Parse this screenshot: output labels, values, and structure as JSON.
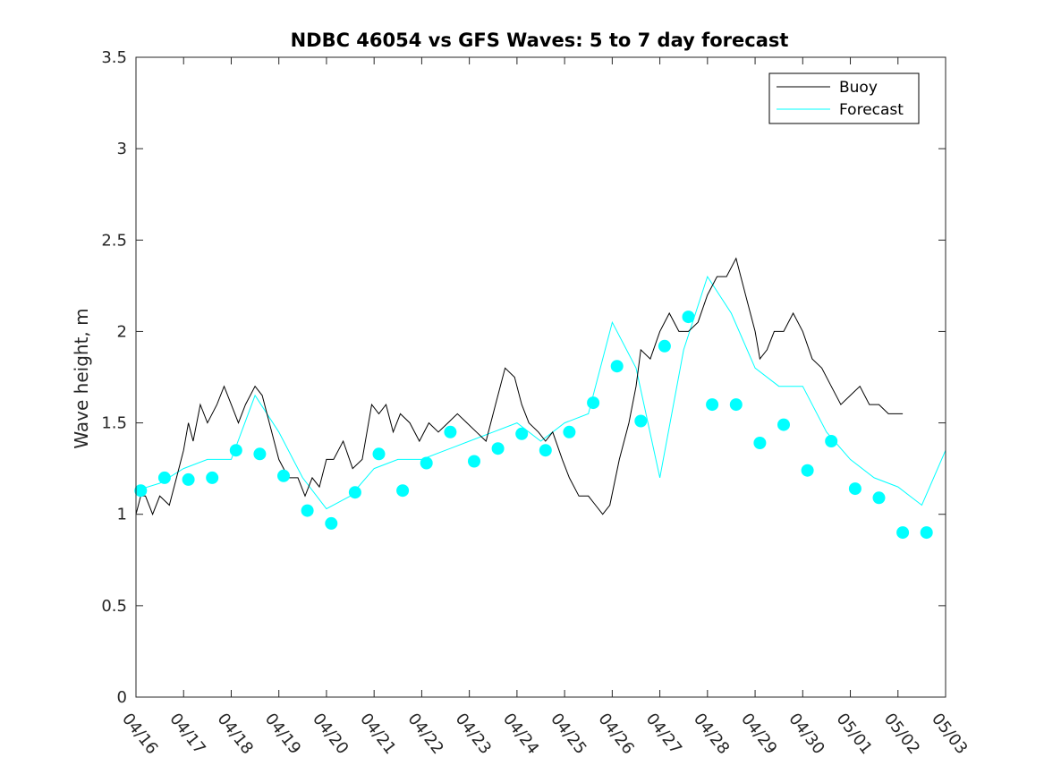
{
  "chart_data": {
    "type": "line",
    "title": "NDBC 46054 vs GFS Waves: 5 to 7 day forecast",
    "xlabel": "",
    "ylabel": "Wave height, m",
    "x_ticks": [
      "04/16",
      "04/17",
      "04/18",
      "04/19",
      "04/20",
      "04/21",
      "04/22",
      "04/23",
      "04/24",
      "04/25",
      "04/26",
      "04/27",
      "04/28",
      "04/29",
      "04/30",
      "05/01",
      "05/02",
      "05/03"
    ],
    "xlim": [
      "04/16",
      "05/03"
    ],
    "y_ticks": [
      "0",
      "0.5",
      "1",
      "1.5",
      "2",
      "2.5",
      "3",
      "3.5"
    ],
    "ylim": [
      0,
      3.5
    ],
    "legend": {
      "placement": "top-right",
      "entries": [
        "Buoy",
        "Forecast"
      ]
    },
    "colors": {
      "buoy": "#000000",
      "forecast": "#00ffff"
    },
    "series": [
      {
        "name": "Buoy",
        "x_days": [
          0,
          0.1,
          0.2,
          0.35,
          0.5,
          0.7,
          0.85,
          1.0,
          1.1,
          1.2,
          1.35,
          1.5,
          1.7,
          1.85,
          2.0,
          2.15,
          2.3,
          2.5,
          2.65,
          2.8,
          3.0,
          3.2,
          3.4,
          3.55,
          3.7,
          3.85,
          4.0,
          4.15,
          4.35,
          4.55,
          4.75,
          4.95,
          5.1,
          5.25,
          5.4,
          5.55,
          5.75,
          5.95,
          6.15,
          6.35,
          6.55,
          6.75,
          6.95,
          7.15,
          7.35,
          7.55,
          7.75,
          7.95,
          8.1,
          8.25,
          8.45,
          8.6,
          8.75,
          8.95,
          9.1,
          9.3,
          9.5,
          9.65,
          9.8,
          9.95,
          10.15,
          10.35,
          10.5,
          10.6,
          10.8,
          11.0,
          11.2,
          11.4,
          11.6,
          11.8,
          12.0,
          12.2,
          12.4,
          12.6,
          12.8,
          13.0,
          13.1,
          13.25,
          13.4,
          13.6,
          13.8,
          14.0,
          14.2,
          14.4,
          14.6,
          14.8,
          15.0,
          15.2,
          15.4,
          15.6,
          15.8,
          15.95,
          16.1
        ],
        "values": [
          1.0,
          1.1,
          1.1,
          1.0,
          1.1,
          1.05,
          1.2,
          1.35,
          1.5,
          1.4,
          1.6,
          1.5,
          1.6,
          1.7,
          1.6,
          1.5,
          1.6,
          1.7,
          1.65,
          1.5,
          1.3,
          1.2,
          1.2,
          1.1,
          1.2,
          1.15,
          1.3,
          1.3,
          1.4,
          1.25,
          1.3,
          1.6,
          1.55,
          1.6,
          1.45,
          1.55,
          1.5,
          1.4,
          1.5,
          1.45,
          1.5,
          1.55,
          1.5,
          1.45,
          1.4,
          1.6,
          1.8,
          1.75,
          1.6,
          1.5,
          1.45,
          1.4,
          1.45,
          1.3,
          1.2,
          1.1,
          1.1,
          1.05,
          1.0,
          1.05,
          1.3,
          1.5,
          1.7,
          1.9,
          1.85,
          2.0,
          2.1,
          2.0,
          2.0,
          2.05,
          2.2,
          2.3,
          2.3,
          2.4,
          2.2,
          2.0,
          1.85,
          1.9,
          2.0,
          2.0,
          2.1,
          2.0,
          1.85,
          1.8,
          1.7,
          1.6,
          1.65,
          1.7,
          1.6,
          1.6,
          1.55,
          1.55,
          1.55
        ]
      },
      {
        "name": "Forecast",
        "x_days": [
          0.0,
          0.5,
          1.0,
          1.5,
          2.0,
          2.5,
          3.0,
          3.5,
          4.0,
          4.5,
          5.0,
          5.5,
          6.0,
          6.5,
          7.0,
          7.5,
          8.0,
          8.5,
          9.0,
          9.5,
          10.0,
          10.5,
          11.0,
          11.5,
          12.0,
          12.5,
          13.0,
          13.5,
          14.0,
          14.5,
          15.0,
          15.5,
          16.0,
          16.5,
          17.0
        ],
        "values": [
          1.13,
          1.17,
          1.25,
          1.3,
          1.3,
          1.65,
          1.45,
          1.2,
          1.03,
          1.1,
          1.25,
          1.3,
          1.3,
          1.35,
          1.4,
          1.45,
          1.5,
          1.4,
          1.5,
          1.55,
          2.05,
          1.8,
          1.2,
          1.9,
          2.3,
          2.1,
          1.8,
          1.7,
          1.7,
          1.45,
          1.3,
          1.2,
          1.15,
          1.05,
          1.35
        ]
      }
    ],
    "forecast_markers": {
      "x_days": [
        0.1,
        0.6,
        1.1,
        1.6,
        2.1,
        2.6,
        3.1,
        3.6,
        4.1,
        4.6,
        5.1,
        5.6,
        6.1,
        6.6,
        7.1,
        7.6,
        8.1,
        8.6,
        9.1,
        9.6,
        10.1,
        10.6,
        11.1,
        11.6,
        12.1,
        12.6,
        13.1,
        13.6,
        14.1,
        14.6,
        15.1,
        15.6,
        16.1,
        16.6
      ],
      "values": [
        1.13,
        1.2,
        1.19,
        1.2,
        1.35,
        1.33,
        1.21,
        1.02,
        0.95,
        1.12,
        1.33,
        1.13,
        1.28,
        1.45,
        1.29,
        1.36,
        1.44,
        1.35,
        1.45,
        1.61,
        1.81,
        1.51,
        1.92,
        2.08,
        1.6,
        1.6,
        1.39,
        1.49,
        1.24,
        1.4,
        1.14,
        1.09,
        0.9,
        0.9
      ]
    }
  }
}
